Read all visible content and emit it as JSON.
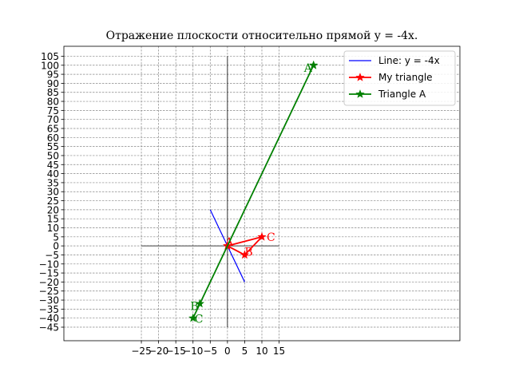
{
  "chart_data": {
    "type": "line",
    "title": "Отражение плоскости относительно прямой y = -4x.",
    "xlabel": "",
    "ylabel": "",
    "xlim": [
      -47.5,
      67.5
    ],
    "ylim": [
      -52.5,
      110.5
    ],
    "x_ticks": [
      -25,
      -20,
      -15,
      -10,
      -5,
      0,
      5,
      10,
      15
    ],
    "y_ticks": [
      -45,
      -40,
      -35,
      -30,
      -25,
      -20,
      -15,
      -10,
      -5,
      0,
      5,
      10,
      15,
      20,
      25,
      30,
      35,
      40,
      45,
      50,
      55,
      60,
      65,
      70,
      75,
      80,
      85,
      90,
      95,
      100,
      105
    ],
    "grid": true,
    "grid_style": "dashed",
    "legend_position": "top-right",
    "colors": {
      "line": "#0000ff",
      "my_triangle": "#ff0000",
      "triangle_a": "#008000"
    },
    "axes_lines": {
      "horizontal": {
        "x": [
          -25,
          15
        ],
        "y": 0
      },
      "vertical": {
        "x": 0,
        "y": [
          -45,
          105
        ]
      }
    },
    "series": [
      {
        "name": "Line: y = -4x",
        "kind": "line",
        "color": "#0000ff",
        "x": [
          -5,
          5
        ],
        "y": [
          20,
          -20
        ]
      },
      {
        "name": "My triangle",
        "kind": "triangle",
        "color": "#ff0000",
        "marker": "star",
        "x": [
          0,
          5,
          10,
          0
        ],
        "y": [
          0,
          -5,
          5,
          0
        ],
        "vertex_labels": [
          "A",
          "B",
          "C"
        ]
      },
      {
        "name": "Triangle A",
        "kind": "triangle",
        "color": "#008000",
        "marker": "star",
        "x": [
          25,
          -8,
          -10,
          25
        ],
        "y": [
          100,
          -32,
          -40,
          100
        ],
        "vertex_labels": [
          "A",
          "B",
          "C"
        ]
      }
    ]
  }
}
